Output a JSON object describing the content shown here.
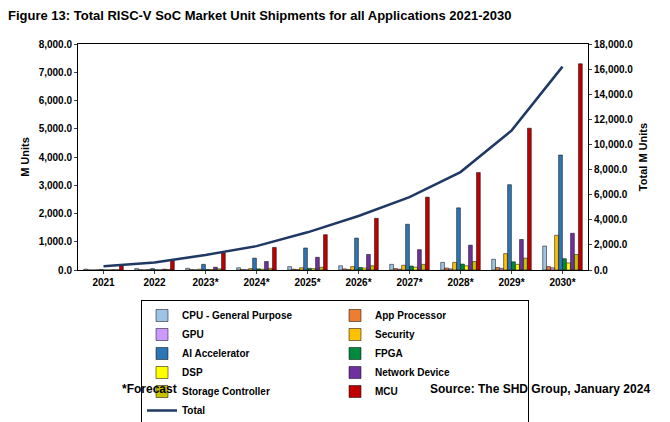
{
  "chart_data": {
    "type": "bar",
    "title": "Figure 13: Total RISC-V SoC Market Unit Shipments for all Applications 2021-2030",
    "categories": [
      "2021",
      "2022",
      "2023*",
      "2024*",
      "2025*",
      "2026*",
      "2027*",
      "2028*",
      "2029*",
      "2030*"
    ],
    "y_label": "M Units",
    "y2_label": "Total M Units",
    "ylim": [
      0,
      8000
    ],
    "yticks": [
      {
        "value": 0,
        "label": "0.0"
      },
      {
        "value": 1000,
        "label": "1,000.0"
      },
      {
        "value": 2000,
        "label": "2,000.0"
      },
      {
        "value": 3000,
        "label": "3,000.0"
      },
      {
        "value": 4000,
        "label": "4,000.0"
      },
      {
        "value": 5000,
        "label": "5,000.0"
      },
      {
        "value": 6000,
        "label": "6,000.0"
      },
      {
        "value": 7000,
        "label": "7,000.0"
      },
      {
        "value": 8000,
        "label": "8,000.0"
      }
    ],
    "y2lim": [
      0,
      18000
    ],
    "y2ticks": [
      {
        "value": 0,
        "label": "0.0"
      },
      {
        "value": 2000,
        "label": "2,000.0"
      },
      {
        "value": 4000,
        "label": "4,000.0"
      },
      {
        "value": 6000,
        "label": "6,000.0"
      },
      {
        "value": 8000,
        "label": "8,000.0"
      },
      {
        "value": 10000,
        "label": "10,000.0"
      },
      {
        "value": 12000,
        "label": "12,000.0"
      },
      {
        "value": 14000,
        "label": "14,000.0"
      },
      {
        "value": 16000,
        "label": "16,000.0"
      },
      {
        "value": 18000,
        "label": "18,000.0"
      }
    ],
    "grid": false,
    "legend": "bottom",
    "series": [
      {
        "name": "CPU - General Purpose",
        "color": "#9DC3E6",
        "values": [
          30,
          50,
          60,
          80,
          120,
          150,
          200,
          270,
          380,
          850
        ]
      },
      {
        "name": "App Processor",
        "color": "#ED7D31",
        "values": [
          5,
          10,
          15,
          20,
          30,
          40,
          50,
          70,
          90,
          120
        ]
      },
      {
        "name": "GPU",
        "color": "#CC99FF",
        "values": [
          2,
          5,
          8,
          10,
          15,
          20,
          30,
          40,
          60,
          80
        ]
      },
      {
        "name": "Security",
        "color": "#FFC000",
        "values": [
          10,
          20,
          30,
          50,
          80,
          120,
          170,
          270,
          580,
          1230
        ]
      },
      {
        "name": "AI Accelerator",
        "color": "#2E75B6",
        "values": [
          20,
          50,
          200,
          420,
          780,
          1130,
          1620,
          2200,
          3020,
          4070
        ]
      },
      {
        "name": "FPGA",
        "color": "#008A3E",
        "values": [
          5,
          10,
          20,
          40,
          60,
          90,
          140,
          210,
          290,
          400
        ]
      },
      {
        "name": "DSP",
        "color": "#FFFF00",
        "values": [
          5,
          10,
          20,
          30,
          50,
          70,
          100,
          150,
          200,
          250
        ]
      },
      {
        "name": "Network Device",
        "color": "#7030A0",
        "values": [
          10,
          30,
          100,
          300,
          450,
          550,
          720,
          880,
          1080,
          1300
        ]
      },
      {
        "name": "Storage Controller",
        "color": "#C9C200",
        "values": [
          10,
          20,
          40,
          60,
          100,
          150,
          200,
          300,
          420,
          550
        ]
      },
      {
        "name": "MCU",
        "color": "#C00000",
        "values": [
          150,
          330,
          600,
          800,
          1250,
          1830,
          2580,
          3450,
          5020,
          7300
        ]
      },
      {
        "name": "Total",
        "color": "#1F3864",
        "type": "line",
        "axis": "y2",
        "line_style": "solid",
        "values": [
          300,
          600,
          1200,
          1900,
          3000,
          4300,
          5800,
          7800,
          11100,
          16200
        ]
      }
    ],
    "annotations": [
      "*Forecast",
      "Source: The SHD Group, January 2024"
    ]
  }
}
